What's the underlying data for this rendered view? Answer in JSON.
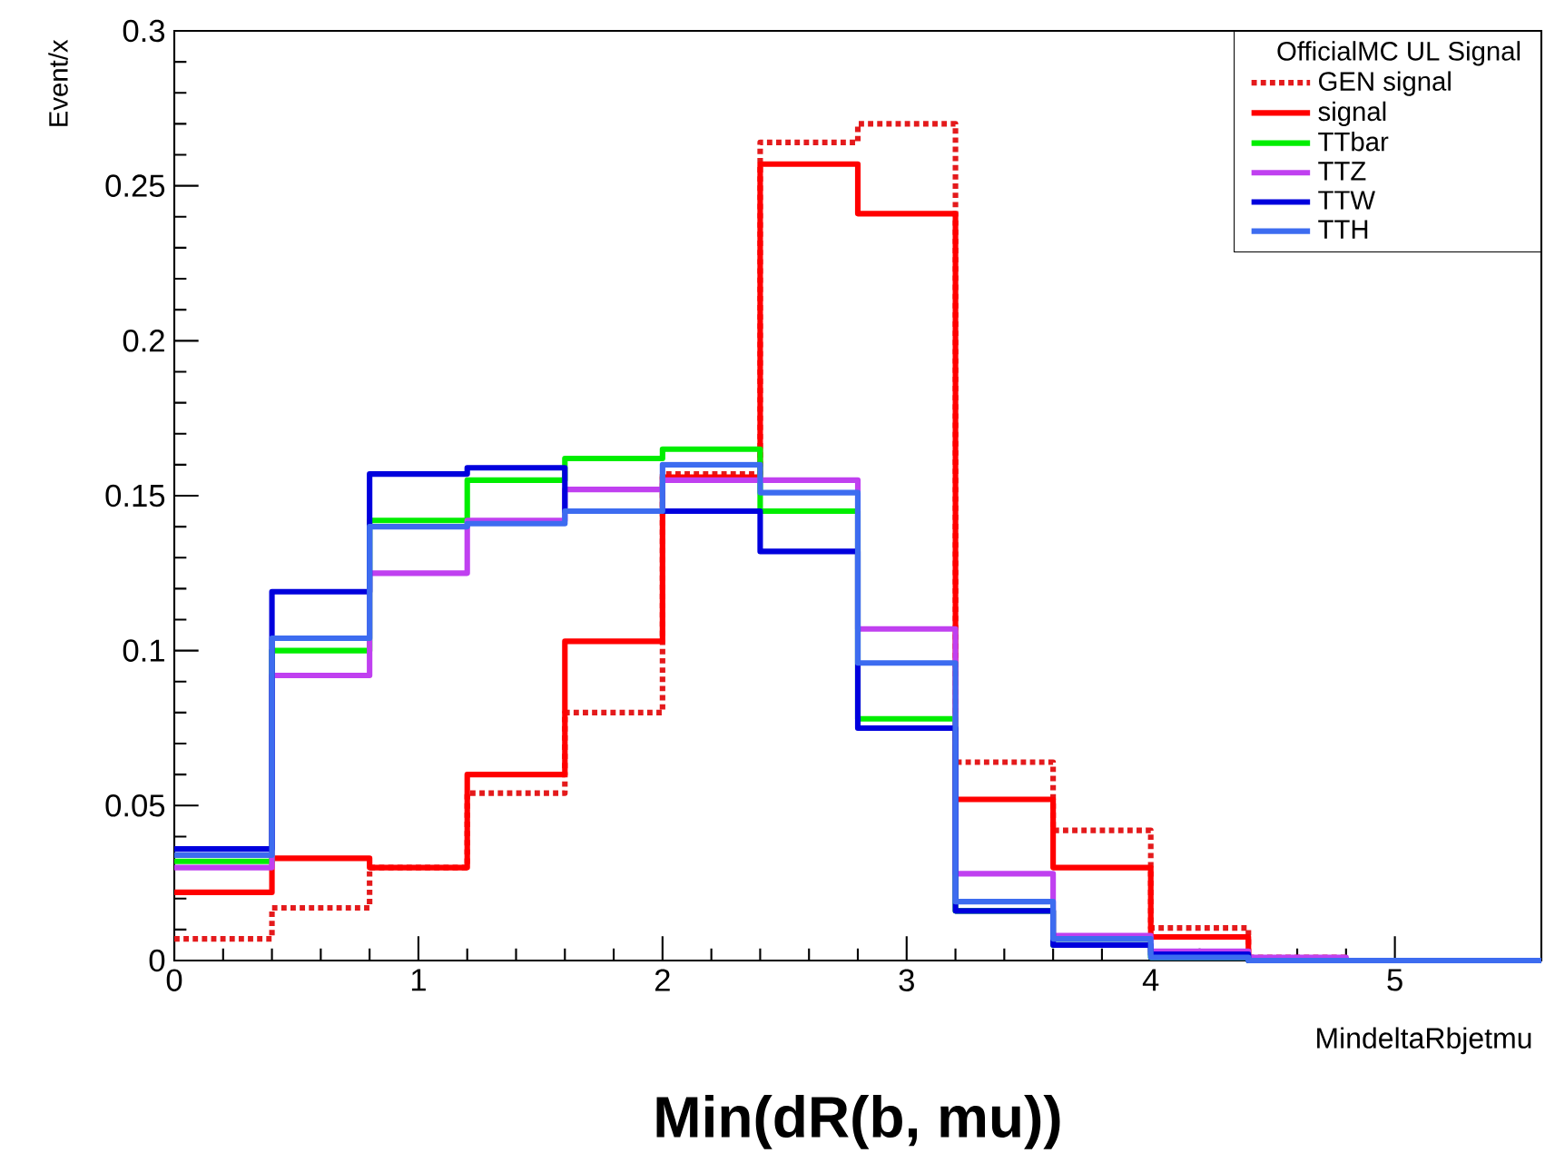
{
  "chart_data": {
    "type": "histogram",
    "xlabel": "MindeltaRbjetmu",
    "ylabel": "Event/x",
    "legend_title": "OfficialMC UL Signal",
    "annotations": [
      "Min(dR(b, mu))"
    ],
    "bins": [
      0,
      0.4,
      0.8,
      1.2,
      1.6,
      2.0,
      2.4,
      2.8,
      3.2,
      3.6,
      4.0,
      4.4,
      4.8,
      5.2,
      5.6
    ],
    "series": [
      {
        "name": "GEN signal",
        "color": "#e41a1c",
        "line_style": "dotted",
        "values": [
          0.007,
          0.017,
          0.03,
          0.054,
          0.08,
          0.157,
          0.264,
          0.27,
          0.064,
          0.042,
          0.0105,
          0.001,
          0,
          0
        ]
      },
      {
        "name": "signal",
        "color": "#ff0000",
        "line_style": "solid",
        "values": [
          0.022,
          0.033,
          0.03,
          0.06,
          0.103,
          0.156,
          0.257,
          0.241,
          0.052,
          0.03,
          0.0076,
          0.0005,
          0,
          0
        ]
      },
      {
        "name": "TTbar",
        "color": "#00ee00",
        "line_style": "solid",
        "values": [
          0.032,
          0.1,
          0.142,
          0.155,
          0.162,
          0.165,
          0.145,
          0.078,
          0.016,
          0.005,
          0.001,
          0,
          0,
          0
        ]
      },
      {
        "name": "TTZ",
        "color": "#c040f0",
        "line_style": "solid",
        "values": [
          0.03,
          0.092,
          0.125,
          0.142,
          0.152,
          0.155,
          0.155,
          0.107,
          0.028,
          0.008,
          0.003,
          0.001,
          0,
          0
        ]
      },
      {
        "name": "TTW",
        "color": "#0000dd",
        "line_style": "solid",
        "values": [
          0.036,
          0.119,
          0.157,
          0.159,
          0.145,
          0.145,
          0.132,
          0.075,
          0.016,
          0.005,
          0.002,
          0,
          0,
          0
        ]
      },
      {
        "name": "TTH",
        "color": "#3d6cf0",
        "line_style": "solid",
        "values": [
          0.034,
          0.104,
          0.14,
          0.141,
          0.145,
          0.16,
          0.151,
          0.096,
          0.019,
          0.007,
          0.001,
          0,
          0,
          0
        ]
      }
    ],
    "xlim": [
      0,
      5.6
    ],
    "xticks": [
      0,
      1,
      2,
      3,
      4,
      5
    ],
    "ylim": [
      0,
      0.3
    ],
    "yticks": [
      0,
      0.05,
      0.1,
      0.15,
      0.2,
      0.25,
      0.3
    ],
    "legend": "top right"
  }
}
